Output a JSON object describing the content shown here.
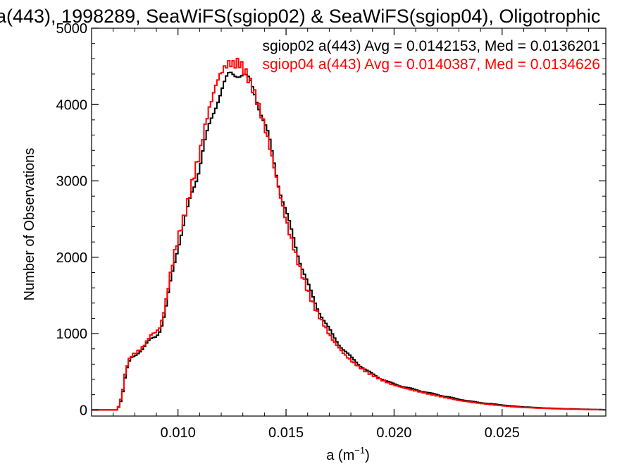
{
  "chart_data": {
    "type": "line",
    "title": "a(443), 1998289, SeaWiFS(sgiop02) & SeaWiFS(sgiop04), Oligotrophic",
    "xlabel_base": "a (m",
    "xlabel_sup": "−1",
    "xlabel_close": ")",
    "ylabel": "Number of Observations",
    "xlim": [
      0.006,
      0.0298
    ],
    "ylim": [
      -80,
      5000
    ],
    "x_ticks": [
      0.01,
      0.015,
      0.02,
      0.025
    ],
    "x_tick_labels": [
      "0.010",
      "0.015",
      "0.020",
      "0.025"
    ],
    "y_ticks": [
      0,
      1000,
      2000,
      3000,
      4000,
      5000
    ],
    "y_tick_labels": [
      "0",
      "1000",
      "2000",
      "3000",
      "4000",
      "5000"
    ],
    "legend_placement": "top-right",
    "annotations": [
      {
        "text": "sgiop02 a(443) Avg = 0.0142153, Med = 0.0136201",
        "color": "#000000"
      },
      {
        "text": "sgiop04 a(443) Avg = 0.0140387, Med = 0.0134626",
        "color": "#ff0000"
      }
    ],
    "series": [
      {
        "name": "sgiop02",
        "color": "#000000",
        "x": [
          0.006,
          0.0072,
          0.0074,
          0.0076,
          0.0078,
          0.008,
          0.0082,
          0.0084,
          0.0086,
          0.0088,
          0.009,
          0.0092,
          0.0094,
          0.0096,
          0.0098,
          0.01,
          0.0102,
          0.0104,
          0.0106,
          0.0108,
          0.011,
          0.0112,
          0.0114,
          0.0116,
          0.0118,
          0.012,
          0.0122,
          0.0124,
          0.0126,
          0.0128,
          0.013,
          0.0132,
          0.0134,
          0.0136,
          0.0138,
          0.014,
          0.0142,
          0.0144,
          0.0146,
          0.0148,
          0.015,
          0.0152,
          0.0154,
          0.0156,
          0.0158,
          0.016,
          0.0162,
          0.0164,
          0.0166,
          0.0168,
          0.017,
          0.0172,
          0.0174,
          0.0176,
          0.0178,
          0.018,
          0.0182,
          0.0184,
          0.0186,
          0.0188,
          0.019,
          0.0192,
          0.0194,
          0.0196,
          0.0198,
          0.02,
          0.0205,
          0.021,
          0.0215,
          0.022,
          0.0225,
          0.023,
          0.0235,
          0.024,
          0.0245,
          0.025,
          0.0255,
          0.026,
          0.0265,
          0.027,
          0.0275,
          0.028,
          0.0285,
          0.029,
          0.0295,
          0.0298
        ],
        "y": [
          0,
          0,
          150,
          500,
          680,
          720,
          760,
          800,
          880,
          950,
          980,
          1050,
          1250,
          1600,
          1900,
          2150,
          2350,
          2550,
          2800,
          3000,
          3200,
          3450,
          3650,
          3850,
          4050,
          4200,
          4300,
          4380,
          4400,
          4420,
          4400,
          4330,
          4250,
          4120,
          3950,
          3750,
          3550,
          3300,
          3050,
          2800,
          2580,
          2380,
          2200,
          2000,
          1820,
          1650,
          1500,
          1370,
          1260,
          1150,
          1050,
          960,
          880,
          810,
          750,
          690,
          640,
          590,
          545,
          505,
          470,
          440,
          410,
          385,
          360,
          340,
          300,
          265,
          230,
          200,
          170,
          140,
          115,
          95,
          80,
          65,
          50,
          40,
          32,
          25,
          20,
          15,
          12,
          8,
          5,
          3
        ]
      },
      {
        "name": "sgiop04",
        "color": "#ff0000",
        "x": [
          0.006,
          0.0072,
          0.0074,
          0.0076,
          0.0078,
          0.008,
          0.0082,
          0.0084,
          0.0086,
          0.0088,
          0.009,
          0.0092,
          0.0094,
          0.0096,
          0.0098,
          0.01,
          0.0102,
          0.0104,
          0.0106,
          0.0108,
          0.011,
          0.0112,
          0.0114,
          0.0116,
          0.0118,
          0.012,
          0.0122,
          0.0124,
          0.0126,
          0.0128,
          0.013,
          0.0132,
          0.0134,
          0.0136,
          0.0138,
          0.014,
          0.0142,
          0.0144,
          0.0146,
          0.0148,
          0.015,
          0.0152,
          0.0154,
          0.0156,
          0.0158,
          0.016,
          0.0162,
          0.0164,
          0.0166,
          0.0168,
          0.017,
          0.0172,
          0.0174,
          0.0176,
          0.0178,
          0.018,
          0.0182,
          0.0184,
          0.0186,
          0.0188,
          0.019,
          0.0192,
          0.0194,
          0.0196,
          0.0198,
          0.02,
          0.0205,
          0.021,
          0.0215,
          0.022,
          0.0225,
          0.023,
          0.0235,
          0.024,
          0.0245,
          0.025,
          0.0255,
          0.026,
          0.0265,
          0.027,
          0.0275,
          0.028,
          0.0285,
          0.029,
          0.0295,
          0.0298
        ],
        "y": [
          0,
          0,
          180,
          550,
          700,
          740,
          780,
          830,
          920,
          1000,
          1020,
          1100,
          1350,
          1700,
          2000,
          2250,
          2450,
          2650,
          2900,
          3150,
          3350,
          3650,
          3900,
          4100,
          4300,
          4420,
          4500,
          4550,
          4520,
          4560,
          4480,
          4380,
          4250,
          4100,
          3920,
          3720,
          3500,
          3250,
          2980,
          2720,
          2480,
          2270,
          2080,
          1890,
          1720,
          1560,
          1420,
          1300,
          1190,
          1090,
          990,
          900,
          830,
          760,
          700,
          650,
          600,
          560,
          520,
          485,
          455,
          425,
          395,
          370,
          345,
          325,
          285,
          250,
          215,
          185,
          155,
          125,
          105,
          85,
          70,
          55,
          42,
          33,
          26,
          20,
          15,
          12,
          9,
          6,
          4,
          2
        ]
      }
    ]
  }
}
